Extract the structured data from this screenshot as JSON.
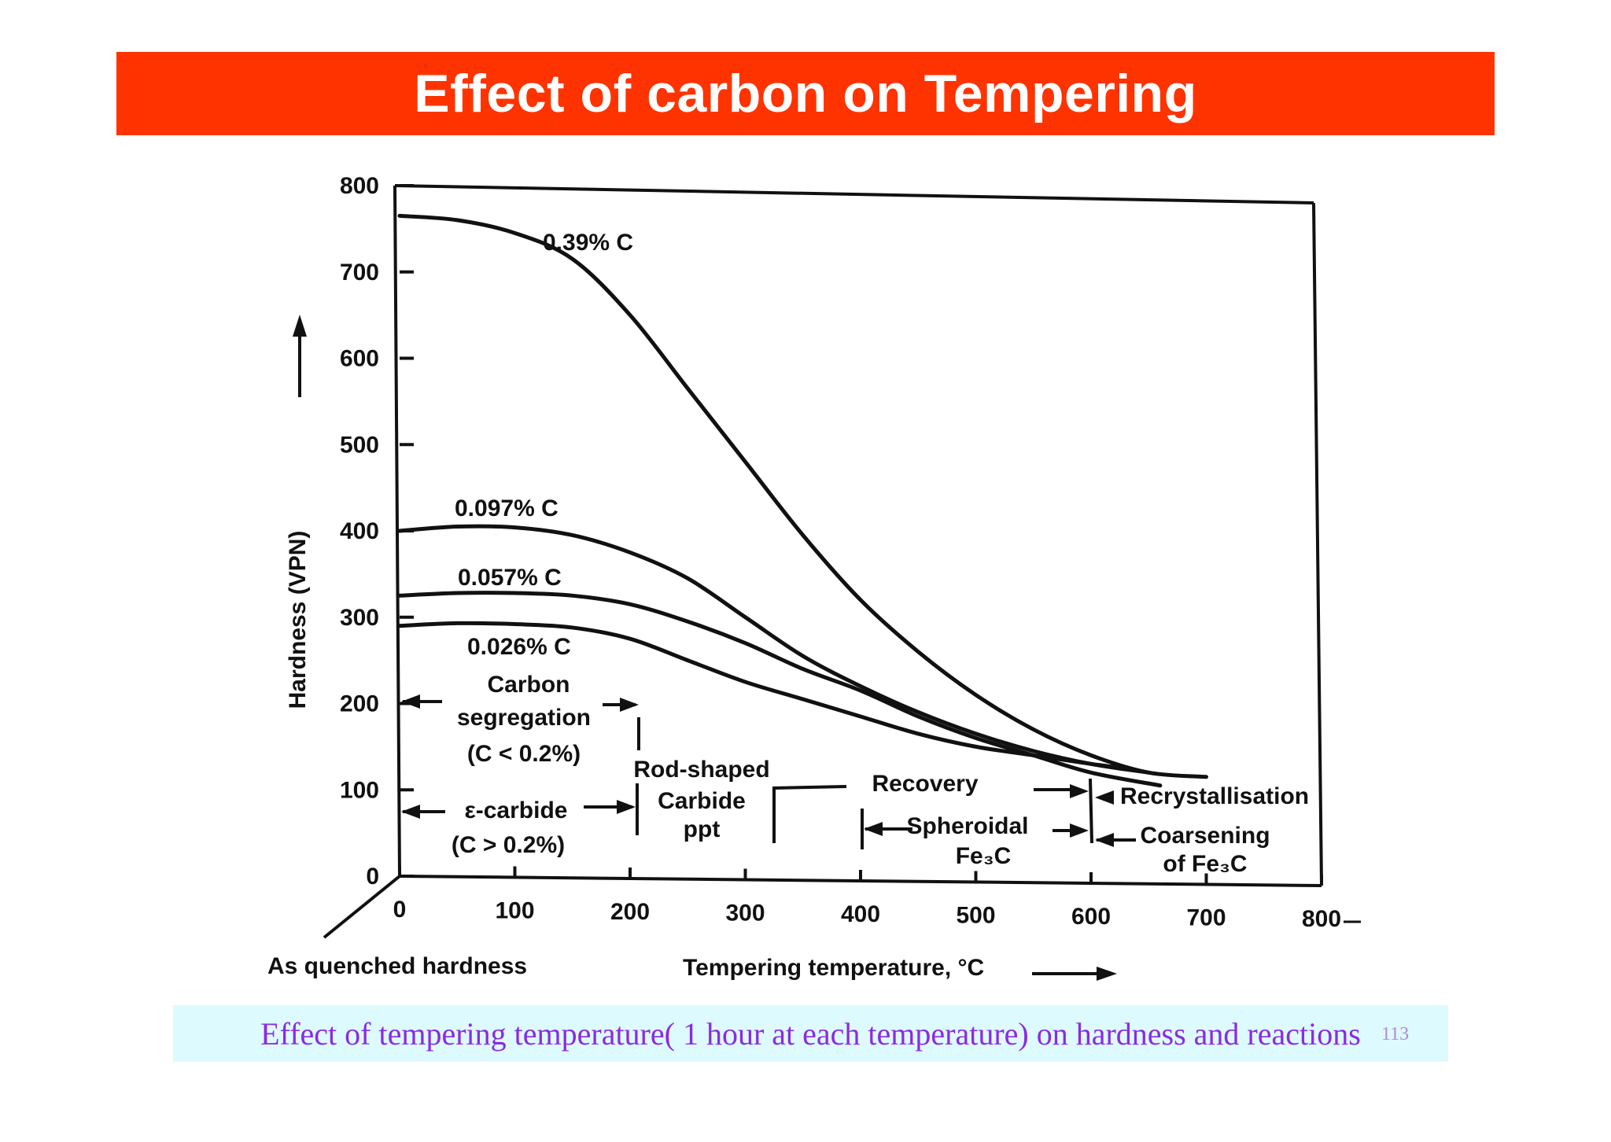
{
  "slide": {
    "title": "Effect of carbon on Tempering",
    "caption": "Effect of tempering temperature( 1 hour at each temperature) on hardness and reactions",
    "page_number": "113"
  },
  "chart_data": {
    "type": "line",
    "title": "",
    "xlabel": "Tempering temperature, °C",
    "ylabel": "Hardness (VPN)",
    "xlim": [
      0,
      800
    ],
    "ylim": [
      0,
      800
    ],
    "x_ticks": [
      "0",
      "100",
      "200",
      "300",
      "400",
      "500",
      "600",
      "700",
      "800"
    ],
    "y_ticks": [
      "0",
      "100",
      "200",
      "300",
      "400",
      "500",
      "600",
      "700",
      "800"
    ],
    "grid": false,
    "origin_label": "As quenched hardness",
    "series": [
      {
        "name": "0.39% C",
        "x": [
          0,
          50,
          100,
          150,
          200,
          250,
          300,
          350,
          400,
          450,
          500,
          550,
          600,
          650,
          700
        ],
        "y": [
          765,
          760,
          745,
          715,
          650,
          565,
          480,
          395,
          320,
          260,
          210,
          170,
          140,
          120,
          115
        ]
      },
      {
        "name": "0.097% C",
        "x": [
          0,
          50,
          100,
          150,
          200,
          250,
          300,
          350,
          400,
          450,
          500,
          550,
          600,
          650
        ],
        "y": [
          400,
          405,
          404,
          395,
          375,
          345,
          300,
          255,
          220,
          190,
          165,
          145,
          130,
          120
        ]
      },
      {
        "name": "0.057% C",
        "x": [
          0,
          50,
          100,
          150,
          200,
          250,
          300,
          350,
          400,
          450,
          500,
          550,
          600,
          660
        ],
        "y": [
          325,
          328,
          328,
          325,
          315,
          295,
          270,
          240,
          215,
          185,
          160,
          140,
          120,
          105
        ]
      },
      {
        "name": "0.026% C",
        "x": [
          0,
          50,
          100,
          150,
          200,
          250,
          300,
          350,
          400,
          450,
          500,
          550,
          600,
          630
        ],
        "y": [
          290,
          293,
          292,
          288,
          275,
          250,
          225,
          205,
          185,
          165,
          150,
          140,
          130,
          125
        ]
      }
    ],
    "annotations": [
      {
        "text": "Carbon",
        "region": "0–200 °C"
      },
      {
        "text": "segregation",
        "region": "0–200 °C"
      },
      {
        "text": "(C < 0.2%)",
        "region": "0–200 °C"
      },
      {
        "text": "ε-carbide",
        "region": "0–200 °C"
      },
      {
        "text": "(C > 0.2%)",
        "region": "0–200 °C"
      },
      {
        "text": "Rod-shaped",
        "region": "200–320 °C"
      },
      {
        "text": "Carbide",
        "region": "200–320 °C"
      },
      {
        "text": "ppt",
        "region": "200–320 °C"
      },
      {
        "text": "Recovery",
        "region": "320–600 °C"
      },
      {
        "text": "Spheroidal",
        "region": "400–600 °C"
      },
      {
        "text": "Fe₃C",
        "region": "400–600 °C"
      },
      {
        "text": "Recrystallisation",
        "region": "600–800 °C"
      },
      {
        "text": "Coarsening",
        "region": "600–800 °C"
      },
      {
        "text": "of Fe₃C",
        "region": "600–800 °C"
      }
    ],
    "colors": {
      "title_bar": "#ff3300",
      "caption_bg": "#ddfaff",
      "caption_text": "#8a2be2",
      "lines": "#111111"
    }
  }
}
